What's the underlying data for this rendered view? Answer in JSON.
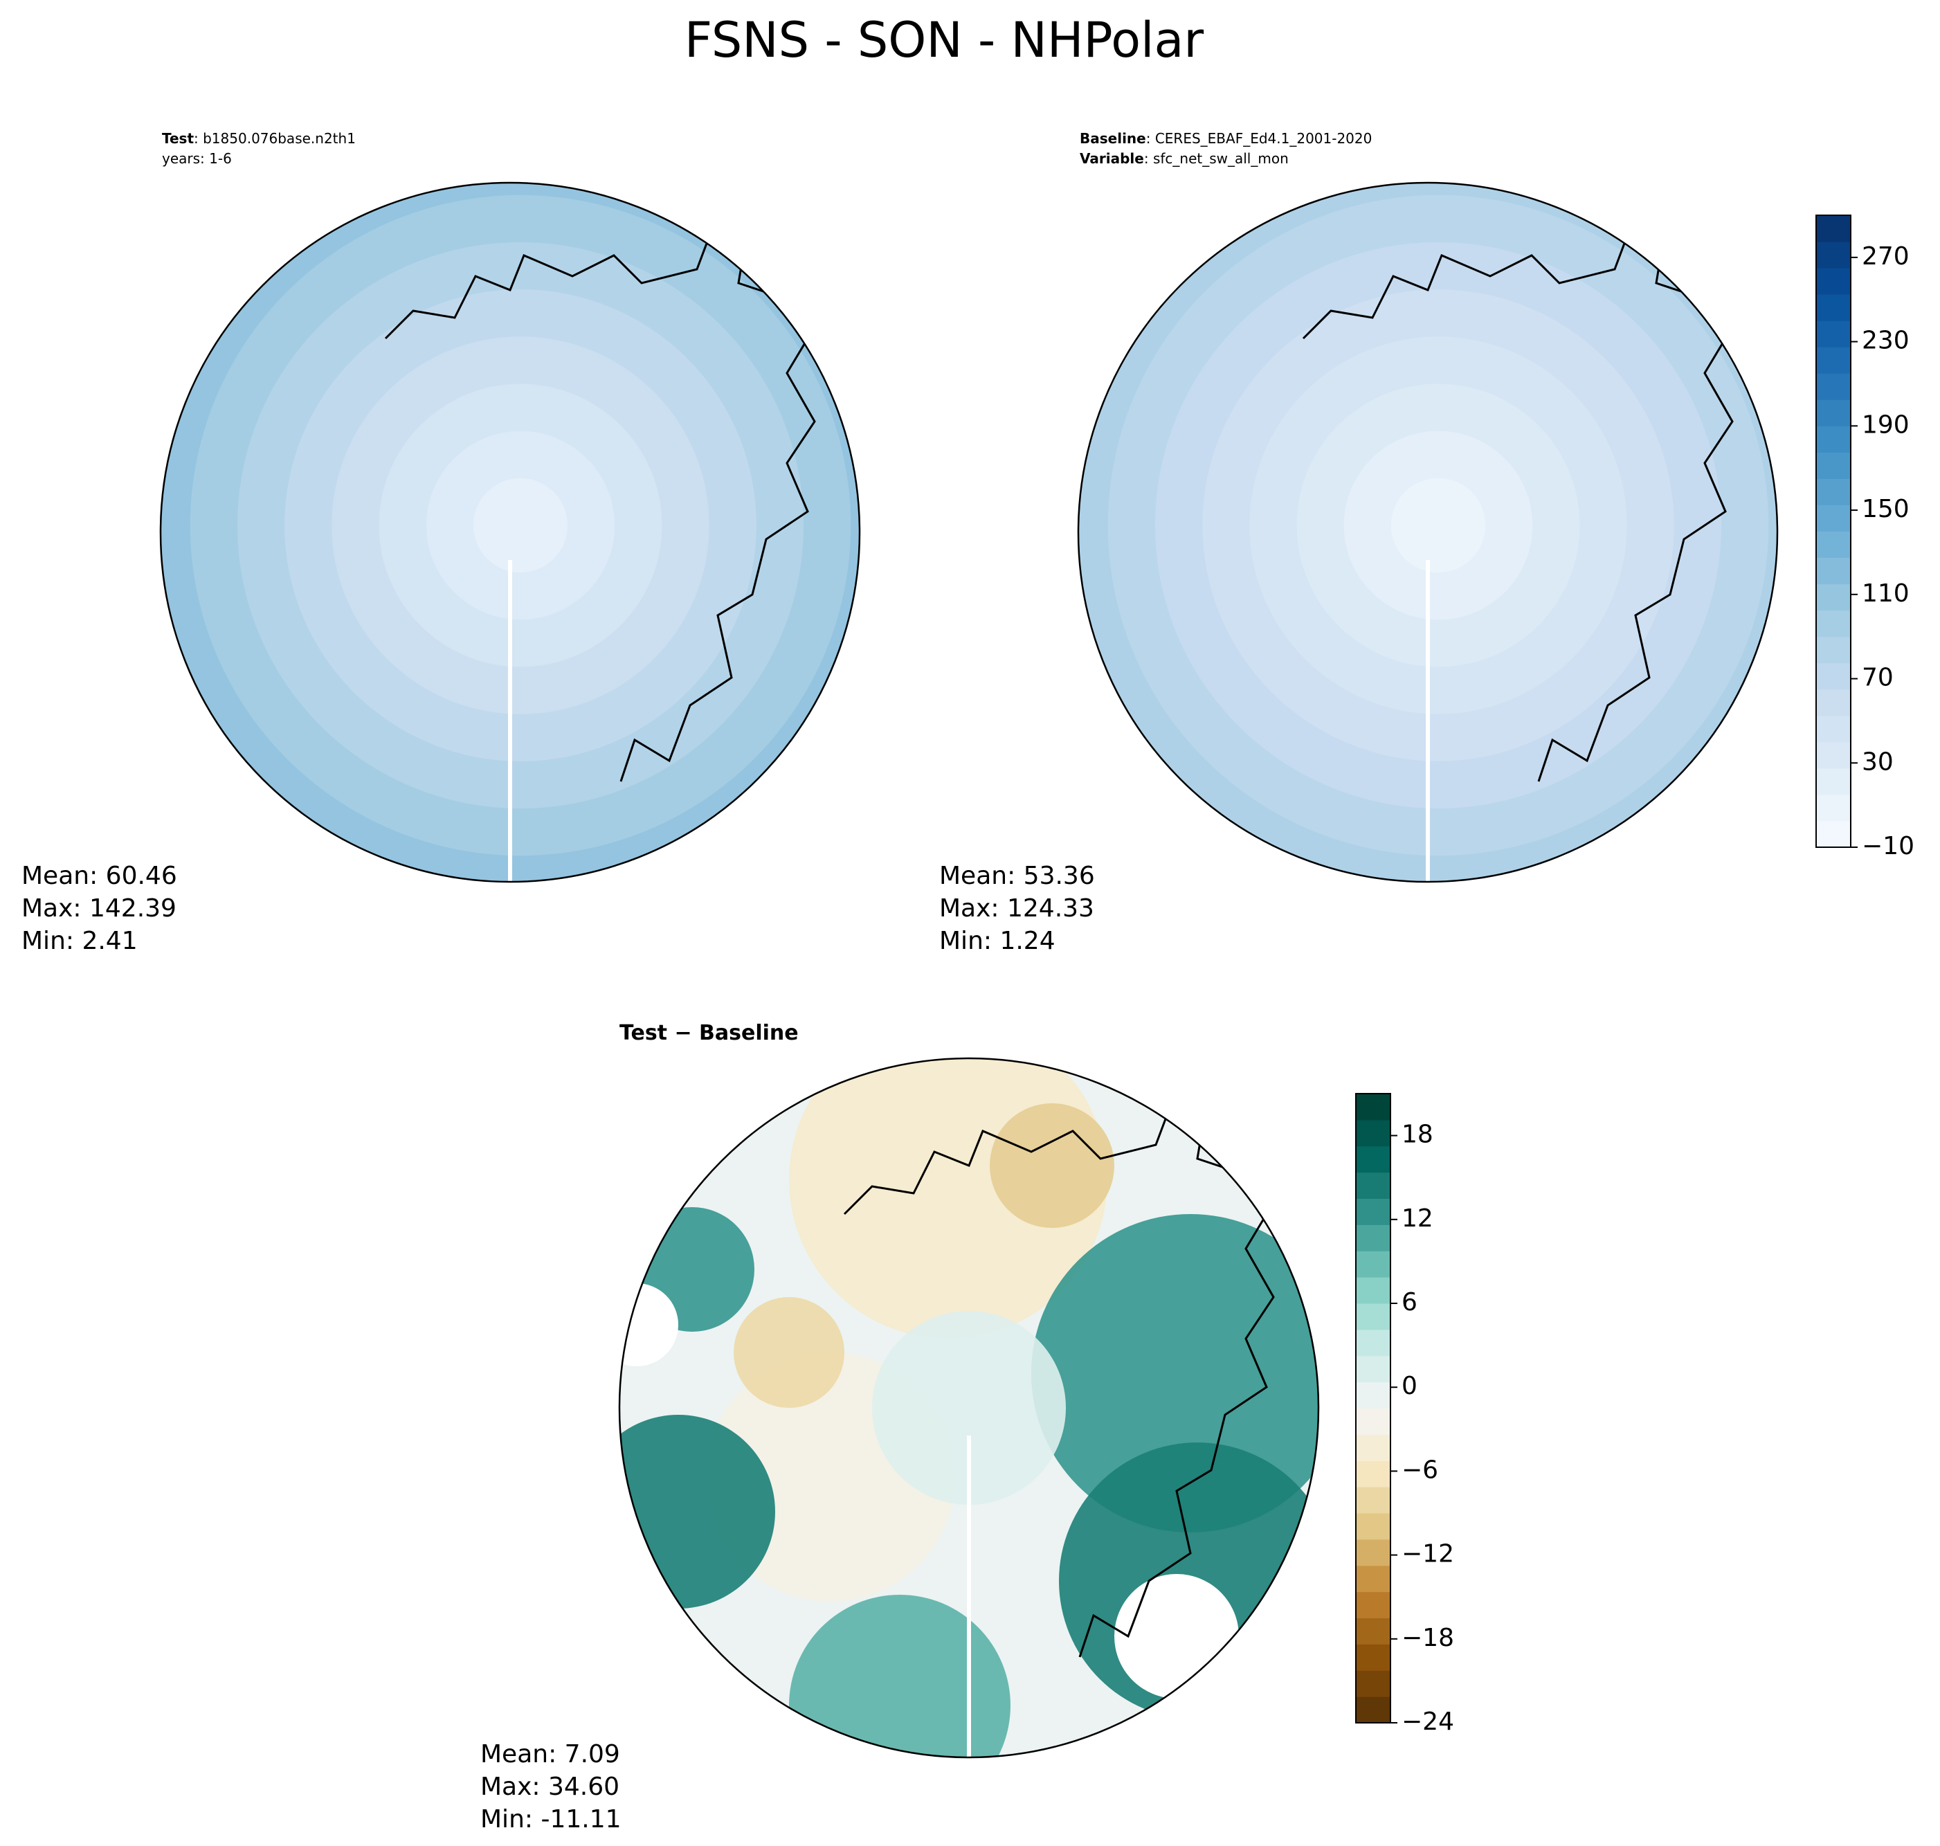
{
  "title": "FSNS - SON - NHPolar",
  "panels": [
    {
      "header": [
        {
          "bold": "Test",
          "text": ": b1850.076base.n2th1"
        },
        {
          "bold": "",
          "text": "years: 1-6"
        }
      ],
      "stats": [
        "Mean: 60.46",
        "Max: 142.39",
        "Min:  2.41"
      ]
    },
    {
      "header": [
        {
          "bold": "Baseline",
          "text": ": CERES_EBAF_Ed4.1_2001-2020"
        },
        {
          "bold": "Variable",
          "text": ": sfc_net_sw_all_mon"
        }
      ],
      "stats": [
        "Mean: 53.36",
        "Max: 124.33",
        "Min:  1.24"
      ]
    },
    {
      "header": [
        {
          "bold": "Test − Baseline",
          "text": ""
        }
      ],
      "stats": [
        "Mean:  7.09",
        "Max: 34.60",
        "Min: -11.11"
      ]
    }
  ],
  "colorbars": [
    {
      "lim": [
        -10,
        290
      ],
      "cmap": [
        "#f7fbff",
        "#deebf7",
        "#c6dbef",
        "#9ecae1",
        "#6baed6",
        "#4292c6",
        "#2171b5",
        "#08519c",
        "#08306b"
      ],
      "ticks": [
        {
          "value": -10,
          "label": "−10"
        },
        30,
        70,
        110,
        150,
        190,
        230,
        270
      ]
    },
    {
      "lim": [
        -24,
        21
      ],
      "cmap": [
        "#543005",
        "#8c510a",
        "#bf812d",
        "#dfc27d",
        "#f6e8c3",
        "#f5f5f5",
        "#c7eae5",
        "#80cdc1",
        "#35978f",
        "#01665e",
        "#003c30"
      ],
      "ticks": [
        {
          "value": -24,
          "label": "−24"
        },
        {
          "value": -18,
          "label": "−18"
        },
        {
          "value": -12,
          "label": "−12"
        },
        {
          "value": -6,
          "label": "−6"
        },
        0,
        6,
        12,
        18
      ]
    }
  ]
}
